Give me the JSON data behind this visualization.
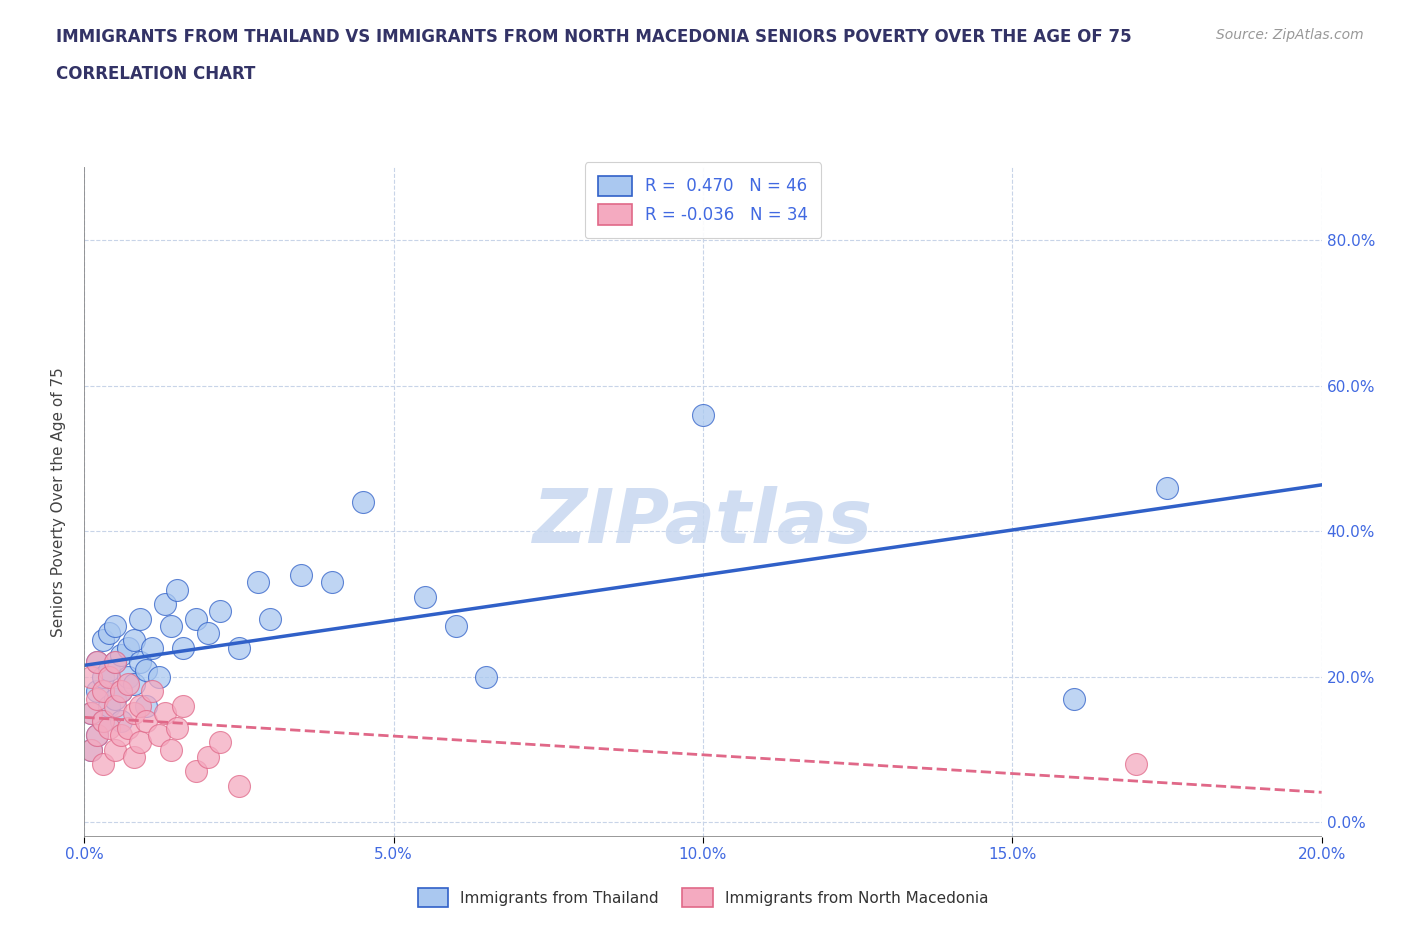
{
  "title_line1": "IMMIGRANTS FROM THAILAND VS IMMIGRANTS FROM NORTH MACEDONIA SENIORS POVERTY OVER THE AGE OF 75",
  "title_line2": "CORRELATION CHART",
  "source_text": "Source: ZipAtlas.com",
  "ylabel": "Seniors Poverty Over the Age of 75",
  "xlim": [
    0.0,
    0.2
  ],
  "ylim": [
    -0.02,
    0.9
  ],
  "x_ticks": [
    0.0,
    0.05,
    0.1,
    0.15,
    0.2
  ],
  "y_ticks": [
    0.0,
    0.2,
    0.4,
    0.6,
    0.8
  ],
  "thailand_R": 0.47,
  "thailand_N": 46,
  "macedonia_R": -0.036,
  "macedonia_N": 34,
  "thailand_color": "#aac8f0",
  "macedonia_color": "#f4aac0",
  "trend_blue": "#3060c8",
  "trend_pink": "#e06888",
  "background": "#ffffff",
  "grid_color": "#c8d4e8",
  "watermark_color": "#c8d8f0",
  "thailand_x": [
    0.001,
    0.001,
    0.002,
    0.002,
    0.002,
    0.003,
    0.003,
    0.003,
    0.004,
    0.004,
    0.004,
    0.005,
    0.005,
    0.005,
    0.006,
    0.006,
    0.006,
    0.007,
    0.007,
    0.008,
    0.008,
    0.009,
    0.009,
    0.01,
    0.01,
    0.011,
    0.012,
    0.013,
    0.014,
    0.015,
    0.016,
    0.018,
    0.02,
    0.022,
    0.025,
    0.028,
    0.03,
    0.035,
    0.04,
    0.045,
    0.055,
    0.06,
    0.065,
    0.1,
    0.16,
    0.175
  ],
  "thailand_y": [
    0.1,
    0.15,
    0.12,
    0.18,
    0.22,
    0.14,
    0.2,
    0.25,
    0.16,
    0.21,
    0.26,
    0.17,
    0.22,
    0.27,
    0.18,
    0.23,
    0.14,
    0.2,
    0.24,
    0.19,
    0.25,
    0.22,
    0.28,
    0.21,
    0.16,
    0.24,
    0.2,
    0.3,
    0.27,
    0.32,
    0.24,
    0.28,
    0.26,
    0.29,
    0.24,
    0.33,
    0.28,
    0.34,
    0.33,
    0.44,
    0.31,
    0.27,
    0.2,
    0.56,
    0.17,
    0.46
  ],
  "macedonia_x": [
    0.001,
    0.001,
    0.001,
    0.002,
    0.002,
    0.002,
    0.003,
    0.003,
    0.003,
    0.004,
    0.004,
    0.005,
    0.005,
    0.005,
    0.006,
    0.006,
    0.007,
    0.007,
    0.008,
    0.008,
    0.009,
    0.009,
    0.01,
    0.011,
    0.012,
    0.013,
    0.014,
    0.015,
    0.016,
    0.018,
    0.02,
    0.022,
    0.025,
    0.17
  ],
  "macedonia_y": [
    0.15,
    0.1,
    0.2,
    0.17,
    0.12,
    0.22,
    0.14,
    0.18,
    0.08,
    0.2,
    0.13,
    0.16,
    0.1,
    0.22,
    0.18,
    0.12,
    0.19,
    0.13,
    0.15,
    0.09,
    0.16,
    0.11,
    0.14,
    0.18,
    0.12,
    0.15,
    0.1,
    0.13,
    0.16,
    0.07,
    0.09,
    0.11,
    0.05,
    0.08
  ],
  "legend_label_1": "Immigrants from Thailand",
  "legend_label_2": "Immigrants from North Macedonia"
}
